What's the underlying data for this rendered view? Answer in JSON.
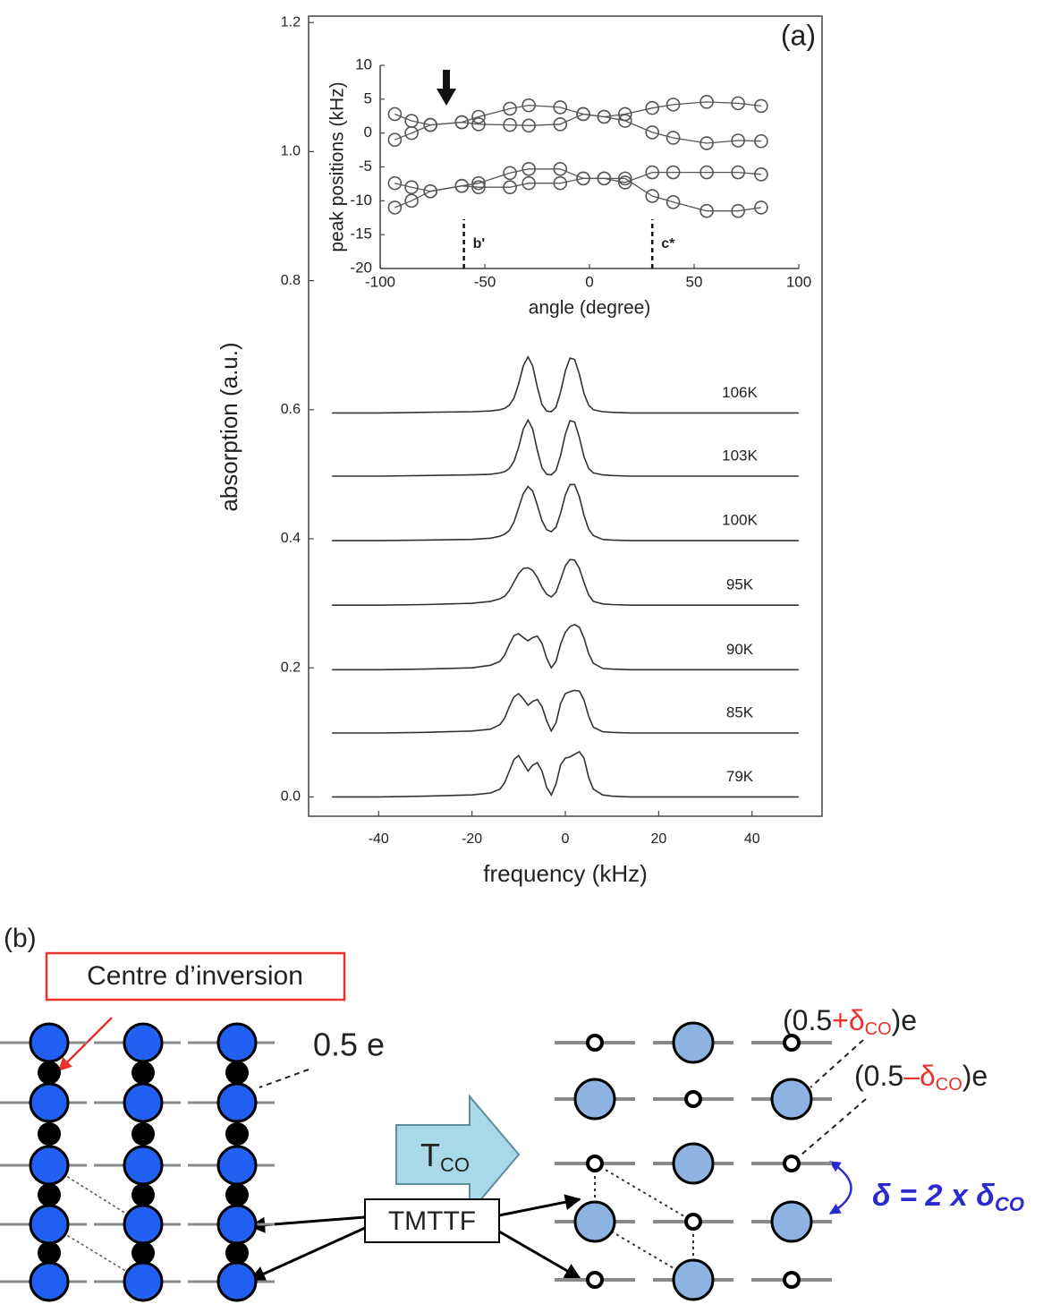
{
  "chart_data": [
    {
      "type": "line",
      "panel_label": "(a)",
      "x_label": "frequency (kHz)",
      "y_label": "absorption (a.u.)",
      "xlim": [
        -55,
        55
      ],
      "xticks": [
        -40,
        -20,
        0,
        20,
        40
      ],
      "ylim": [
        -0.03,
        1.21
      ],
      "yticks": [
        {
          "value": 0,
          "label": "0.0"
        },
        0.2,
        0.4,
        0.6,
        0.8,
        {
          "value": 1,
          "label": "1.0"
        },
        1.2
      ],
      "x": [
        -50,
        -40,
        -30,
        -20,
        -16,
        -14,
        -13,
        -12,
        -11,
        -10,
        -9,
        -8,
        -7,
        -6,
        -5,
        -4,
        -3,
        -2,
        -1,
        0,
        1,
        2,
        3,
        4,
        5,
        6,
        8,
        10,
        14,
        20,
        30,
        40,
        50
      ],
      "series": [
        {
          "name": "106K",
          "color": "#333333",
          "values": [
            0.595,
            0.595,
            0.596,
            0.597,
            0.598,
            0.6,
            0.602,
            0.607,
            0.618,
            0.64,
            0.668,
            0.682,
            0.668,
            0.635,
            0.608,
            0.598,
            0.597,
            0.604,
            0.628,
            0.66,
            0.68,
            0.678,
            0.655,
            0.625,
            0.607,
            0.6,
            0.597,
            0.596,
            0.595,
            0.595,
            0.595,
            0.595,
            0.595
          ]
        },
        {
          "name": "103K",
          "color": "#333333",
          "values": [
            0.497,
            0.497,
            0.498,
            0.499,
            0.5,
            0.502,
            0.504,
            0.509,
            0.52,
            0.542,
            0.57,
            0.584,
            0.57,
            0.537,
            0.51,
            0.5,
            0.499,
            0.506,
            0.53,
            0.562,
            0.583,
            0.581,
            0.557,
            0.527,
            0.509,
            0.502,
            0.499,
            0.498,
            0.497,
            0.497,
            0.497,
            0.497,
            0.497
          ]
        },
        {
          "name": "100K",
          "color": "#333333",
          "values": [
            0.397,
            0.397,
            0.398,
            0.399,
            0.401,
            0.404,
            0.407,
            0.413,
            0.426,
            0.448,
            0.47,
            0.481,
            0.474,
            0.452,
            0.428,
            0.414,
            0.411,
            0.418,
            0.44,
            0.468,
            0.484,
            0.484,
            0.465,
            0.436,
            0.415,
            0.405,
            0.399,
            0.398,
            0.397,
            0.397,
            0.397,
            0.397,
            0.397
          ]
        },
        {
          "name": "95K",
          "color": "#333333",
          "values": [
            0.297,
            0.297,
            0.298,
            0.3,
            0.303,
            0.307,
            0.311,
            0.32,
            0.333,
            0.346,
            0.354,
            0.355,
            0.351,
            0.34,
            0.325,
            0.314,
            0.31,
            0.317,
            0.337,
            0.358,
            0.368,
            0.367,
            0.354,
            0.332,
            0.313,
            0.303,
            0.299,
            0.298,
            0.297,
            0.297,
            0.297,
            0.297,
            0.297
          ]
        },
        {
          "name": "90K",
          "color": "#333333",
          "values": [
            0.197,
            0.197,
            0.198,
            0.2,
            0.204,
            0.21,
            0.22,
            0.236,
            0.25,
            0.253,
            0.247,
            0.242,
            0.247,
            0.249,
            0.238,
            0.215,
            0.2,
            0.21,
            0.237,
            0.255,
            0.264,
            0.267,
            0.263,
            0.246,
            0.222,
            0.207,
            0.199,
            0.198,
            0.197,
            0.197,
            0.197,
            0.197,
            0.197
          ]
        },
        {
          "name": "85K",
          "color": "#333333",
          "values": [
            0.099,
            0.099,
            0.1,
            0.102,
            0.105,
            0.112,
            0.122,
            0.14,
            0.155,
            0.16,
            0.152,
            0.142,
            0.148,
            0.151,
            0.14,
            0.118,
            0.102,
            0.115,
            0.145,
            0.16,
            0.163,
            0.165,
            0.164,
            0.15,
            0.125,
            0.108,
            0.101,
            0.1,
            0.099,
            0.099,
            0.099,
            0.099,
            0.099
          ]
        },
        {
          "name": "79K",
          "color": "#333333",
          "values": [
            0.0,
            0.0,
            0.001,
            0.003,
            0.006,
            0.012,
            0.022,
            0.04,
            0.058,
            0.064,
            0.052,
            0.04,
            0.049,
            0.053,
            0.04,
            0.015,
            0.003,
            0.02,
            0.05,
            0.06,
            0.062,
            0.066,
            0.07,
            0.06,
            0.03,
            0.012,
            0.003,
            0.001,
            0.0,
            0.0,
            0.0,
            0.0,
            0.0
          ]
        }
      ]
    },
    {
      "type": "scatter",
      "x_label": "angle (degree)",
      "y_label": "peak  positions (kHz)",
      "xlim": [
        -100,
        100
      ],
      "xticks": [
        -100,
        -50,
        0,
        50,
        100
      ],
      "ylim": [
        -20,
        10
      ],
      "yticks": [
        -20,
        -15,
        -10,
        -5,
        0,
        5,
        10
      ],
      "x": [
        -93,
        -85,
        -76,
        -61,
        -53,
        -38,
        -29,
        -14,
        -3,
        7,
        17,
        30,
        40,
        56,
        71,
        82
      ],
      "series": [
        {
          "color": "#555555",
          "values": [
            2.8,
            1.8,
            1.2,
            1.6,
            2.4,
            3.6,
            4.1,
            3.8,
            2.8,
            2.4,
            2.8,
            3.7,
            4.2,
            4.6,
            4.4,
            4.0
          ]
        },
        {
          "color": "#555555",
          "values": [
            -1.0,
            0.0,
            1.2,
            1.6,
            1.3,
            1.2,
            1.1,
            1.3,
            2.8,
            2.4,
            1.8,
            0.1,
            -0.7,
            -1.5,
            -1.1,
            -1.2
          ]
        },
        {
          "color": "#555555",
          "values": [
            -7.4,
            -8.0,
            -8.6,
            -7.8,
            -7.4,
            -5.9,
            -5.3,
            -5.3,
            -6.7,
            -6.7,
            -7.3,
            -5.8,
            -5.8,
            -5.8,
            -5.8,
            -6.1
          ]
        },
        {
          "color": "#555555",
          "values": [
            -11.0,
            -10.0,
            -8.6,
            -7.8,
            -8.0,
            -8.0,
            -7.4,
            -7.4,
            -6.7,
            -6.7,
            -6.7,
            -9.3,
            -10.2,
            -11.5,
            -11.5,
            -11.0
          ]
        }
      ],
      "annotations": [
        {
          "text": "b'",
          "x": -60
        },
        {
          "text": "c*",
          "x": 30
        }
      ]
    }
  ],
  "diagram": {
    "panel": "(b)",
    "inversion_label": "Centre d’inversion",
    "uniform_charge": "0.5 e",
    "transition": [
      "T",
      "CO"
    ],
    "molecule": "TMTTF",
    "rich_charge": [
      "(0.5",
      "+δ",
      "CO",
      ")e"
    ],
    "poor_charge": [
      "(0.5",
      "–δ",
      "CO",
      ")e"
    ],
    "delta": [
      "δ = 2 x δ",
      "CO"
    ]
  }
}
